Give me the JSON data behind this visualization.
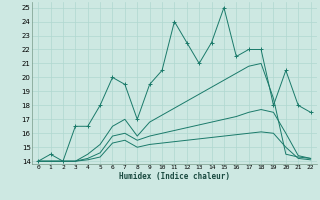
{
  "xlabel": "Humidex (Indice chaleur)",
  "xlim": [
    -0.5,
    22.5
  ],
  "ylim": [
    13.8,
    25.4
  ],
  "xticks": [
    0,
    1,
    2,
    3,
    4,
    5,
    6,
    7,
    8,
    9,
    10,
    11,
    12,
    13,
    14,
    15,
    16,
    17,
    18,
    19,
    20,
    21,
    22
  ],
  "yticks": [
    14,
    15,
    16,
    17,
    18,
    19,
    20,
    21,
    22,
    23,
    24,
    25
  ],
  "bg_color": "#cde8e2",
  "grid_color": "#b0d8d0",
  "line_color": "#1a7a6a",
  "series": {
    "main": {
      "x": [
        0,
        1,
        2,
        3,
        4,
        5,
        6,
        7,
        8,
        9,
        10,
        11,
        12,
        13,
        14,
        15,
        16,
        17,
        18,
        19,
        20,
        21,
        22
      ],
      "y": [
        14,
        14.5,
        14,
        16.5,
        16.5,
        18,
        20,
        19.5,
        17,
        19.5,
        20.5,
        24,
        22.5,
        21,
        22.5,
        25,
        21.5,
        22,
        22,
        18,
        20.5,
        18,
        17.5
      ]
    },
    "upper": {
      "x": [
        0,
        2,
        3,
        4,
        5,
        6,
        7,
        8,
        9,
        10,
        11,
        12,
        13,
        14,
        15,
        16,
        17,
        18,
        19,
        20,
        21,
        22
      ],
      "y": [
        14,
        14,
        14,
        14.5,
        15.2,
        16.5,
        17,
        15.8,
        16.8,
        17.3,
        17.8,
        18.3,
        18.8,
        19.3,
        19.8,
        20.3,
        20.8,
        21.0,
        18.5,
        14.5,
        14.3,
        14.2
      ]
    },
    "mid": {
      "x": [
        0,
        2,
        3,
        4,
        5,
        6,
        7,
        8,
        9,
        10,
        11,
        12,
        13,
        14,
        15,
        16,
        17,
        18,
        19,
        20,
        21,
        22
      ],
      "y": [
        14,
        14,
        14,
        14.2,
        14.6,
        15.8,
        16.0,
        15.5,
        15.8,
        16.0,
        16.2,
        16.4,
        16.6,
        16.8,
        17.0,
        17.2,
        17.5,
        17.7,
        17.5,
        16.0,
        14.4,
        14.2
      ]
    },
    "lower": {
      "x": [
        0,
        2,
        3,
        4,
        5,
        6,
        7,
        8,
        9,
        10,
        11,
        12,
        13,
        14,
        15,
        16,
        17,
        18,
        19,
        20,
        21,
        22
      ],
      "y": [
        14,
        14,
        14,
        14.1,
        14.3,
        15.3,
        15.5,
        15.0,
        15.2,
        15.3,
        15.4,
        15.5,
        15.6,
        15.7,
        15.8,
        15.9,
        16.0,
        16.1,
        16.0,
        15.0,
        14.2,
        14.1
      ]
    }
  }
}
